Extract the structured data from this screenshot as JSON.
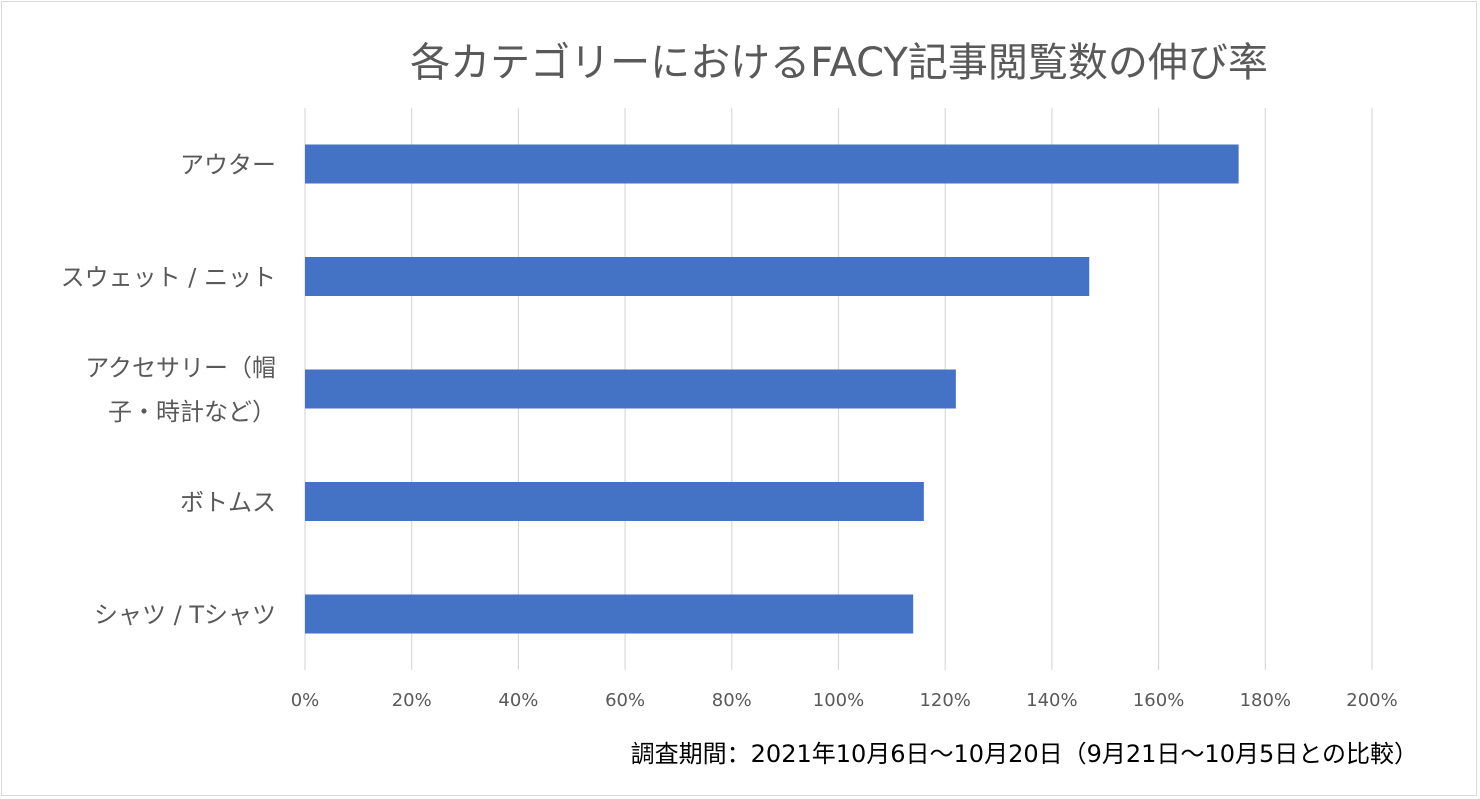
{
  "chart_data": {
    "type": "bar",
    "orientation": "horizontal",
    "title": "各カテゴリーにおけるFACY記事閲覧数の伸び率",
    "categories": [
      [
        "アウター"
      ],
      [
        "スウェット / ニット"
      ],
      [
        "アクセサリー（帽",
        "子・時計など）"
      ],
      [
        "ボトムス"
      ],
      [
        "シャツ / Tシャツ"
      ]
    ],
    "values": [
      175,
      147,
      122,
      116,
      114
    ],
    "value_unit": "%",
    "xlim": [
      0,
      200
    ],
    "x_ticks": [
      "0%",
      "20%",
      "40%",
      "60%",
      "80%",
      "100%",
      "120%",
      "140%",
      "160%",
      "180%",
      "200%"
    ],
    "grid": "vertical",
    "bar_color": "#4472c4",
    "grid_color": "#d9d9d9",
    "legend": "none",
    "footnote": "調査期間：2021年10月6日〜10月20日（9月21日〜10月5日との比較）"
  }
}
